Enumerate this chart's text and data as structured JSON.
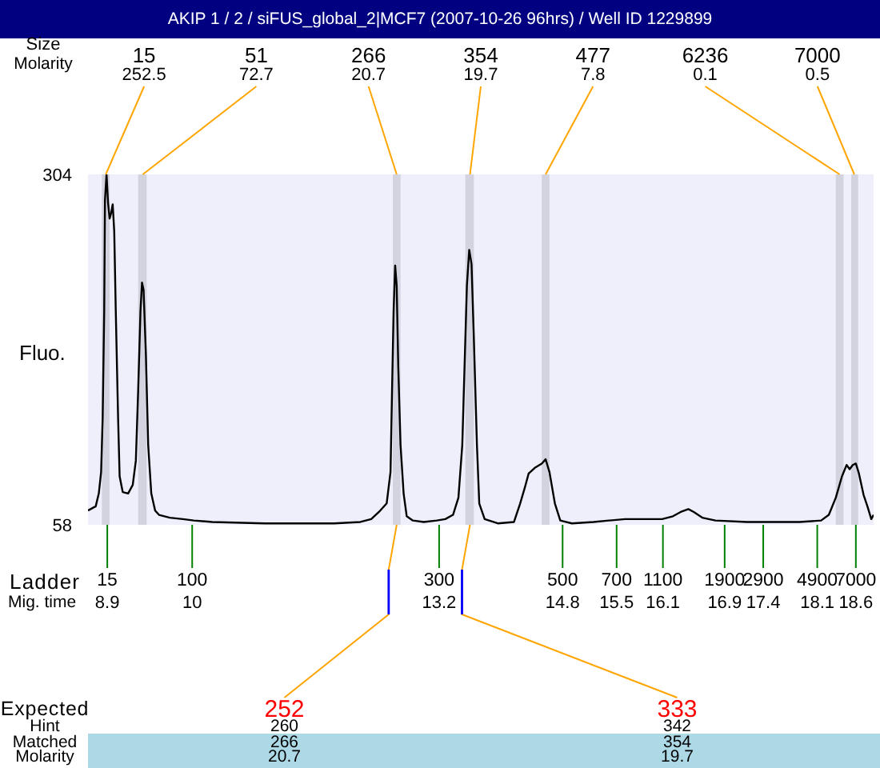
{
  "chart_data": {
    "type": "line",
    "title": "AKIP 1 / 2 / siFUS_global_2|MCF7 (2007-10-26 96hrs) / Well ID 1229899",
    "xlabel": "Mig. time",
    "ylabel": "Fluo.",
    "x": [
      8.65,
      8.75,
      8.79,
      8.82,
      8.84,
      8.86,
      8.87,
      8.89,
      8.91,
      8.93,
      8.95,
      8.97,
      8.99,
      9.01,
      9.04,
      9.06,
      9.1,
      9.17,
      9.23,
      9.27,
      9.3,
      9.33,
      9.35,
      9.37,
      9.4,
      9.43,
      9.47,
      9.52,
      9.57,
      9.71,
      9.88,
      10.02,
      10.26,
      10.94,
      11.84,
      12.18,
      12.32,
      12.42,
      12.52,
      12.57,
      12.59,
      12.61,
      12.63,
      12.65,
      12.67,
      12.7,
      12.74,
      12.78,
      12.86,
      13.0,
      13.17,
      13.28,
      13.38,
      13.45,
      13.5,
      13.53,
      13.56,
      13.59,
      13.62,
      13.65,
      13.69,
      13.72,
      13.79,
      13.96,
      14.17,
      14.25,
      14.31,
      14.36,
      14.44,
      14.53,
      14.58,
      14.63,
      14.7,
      14.77,
      14.92,
      15.2,
      15.4,
      15.61,
      15.81,
      16.09,
      16.23,
      16.33,
      16.43,
      16.5,
      16.61,
      16.78,
      17.19,
      17.87,
      18.15,
      18.25,
      18.34,
      18.42,
      18.48,
      18.52,
      18.56,
      18.6,
      18.64,
      18.7,
      18.75,
      18.8,
      18.83
    ],
    "series": [
      {
        "color": "#000000",
        "values": [
          68,
          71,
          80,
          95,
          133,
          208,
          286,
          304,
          284,
          273,
          277,
          283,
          264,
          208,
          133,
          92,
          81,
          80,
          86,
          103,
          152,
          208,
          228,
          223,
          178,
          114,
          80,
          68,
          65,
          63,
          62,
          61,
          60,
          59,
          59,
          60,
          62,
          67,
          73,
          95,
          152,
          208,
          240,
          226,
          170,
          114,
          80,
          64,
          61,
          60,
          61,
          62,
          65,
          77,
          114,
          170,
          226,
          251,
          241,
          189,
          114,
          73,
          62,
          59,
          60,
          73,
          84,
          94,
          98,
          101,
          104,
          95,
          73,
          61,
          59,
          60,
          61,
          62,
          62,
          62,
          64,
          67,
          69,
          67,
          63,
          61,
          60,
          60,
          61,
          65,
          77,
          92,
          100,
          97,
          100,
          101,
          94,
          79,
          71,
          62,
          65
        ]
      }
    ],
    "xlim": [
      8.65,
      18.83
    ],
    "xticks": [
      8.9,
      10,
      13.2,
      14.8,
      15.5,
      16.1,
      16.9,
      17.4,
      18.1,
      18.6
    ],
    "ylim": [
      58,
      304
    ],
    "yticks": [
      58,
      304
    ],
    "bands": [
      {
        "axis": "x",
        "from": 8.83,
        "to": 8.93,
        "label": "15",
        "color": "#d3d3df"
      },
      {
        "axis": "x",
        "from": 9.3,
        "to": 9.41,
        "label": "51",
        "color": "#d3d3df"
      },
      {
        "axis": "x",
        "from": 12.6,
        "to": 12.7,
        "label": "266",
        "color": "#d3d3df"
      },
      {
        "axis": "x",
        "from": 13.54,
        "to": 13.65,
        "label": "354",
        "color": "#d3d3df"
      },
      {
        "axis": "x",
        "from": 14.53,
        "to": 14.63,
        "label": "477",
        "color": "#d3d3df"
      },
      {
        "axis": "x",
        "from": 18.34,
        "to": 18.44,
        "label": "6236",
        "color": "#d3d3df"
      },
      {
        "axis": "x",
        "from": 18.54,
        "to": 18.63,
        "label": "7000",
        "color": "#d3d3df"
      }
    ],
    "annotations": [
      "Size",
      "Molarity",
      {
        "text": "252.5",
        "x": 8.88,
        "y": 304
      },
      {
        "text": "72.7",
        "x": 9.36,
        "y": 304
      },
      {
        "text": "20.7",
        "x": 12.65,
        "y": 304
      },
      {
        "text": "19.7",
        "x": 13.6,
        "y": 304
      },
      {
        "text": "7.8",
        "x": 14.58,
        "y": 304
      },
      {
        "text": "0.1",
        "x": 18.39,
        "y": 304
      },
      {
        "text": "0.5",
        "x": 18.58,
        "y": 304
      },
      "Ladder",
      "15",
      "100",
      "300",
      "500",
      "700",
      "1100",
      "1900",
      "2900",
      "4900",
      "7000",
      {
        "text": "252",
        "x": 12.65,
        "y": 58
      },
      {
        "text": "333",
        "x": 13.6,
        "y": 58
      },
      "Expected",
      "Hint",
      "Matched",
      "Molarity",
      "260",
      "266",
      "20.7",
      "342",
      "354",
      "19.7"
    ]
  }
}
